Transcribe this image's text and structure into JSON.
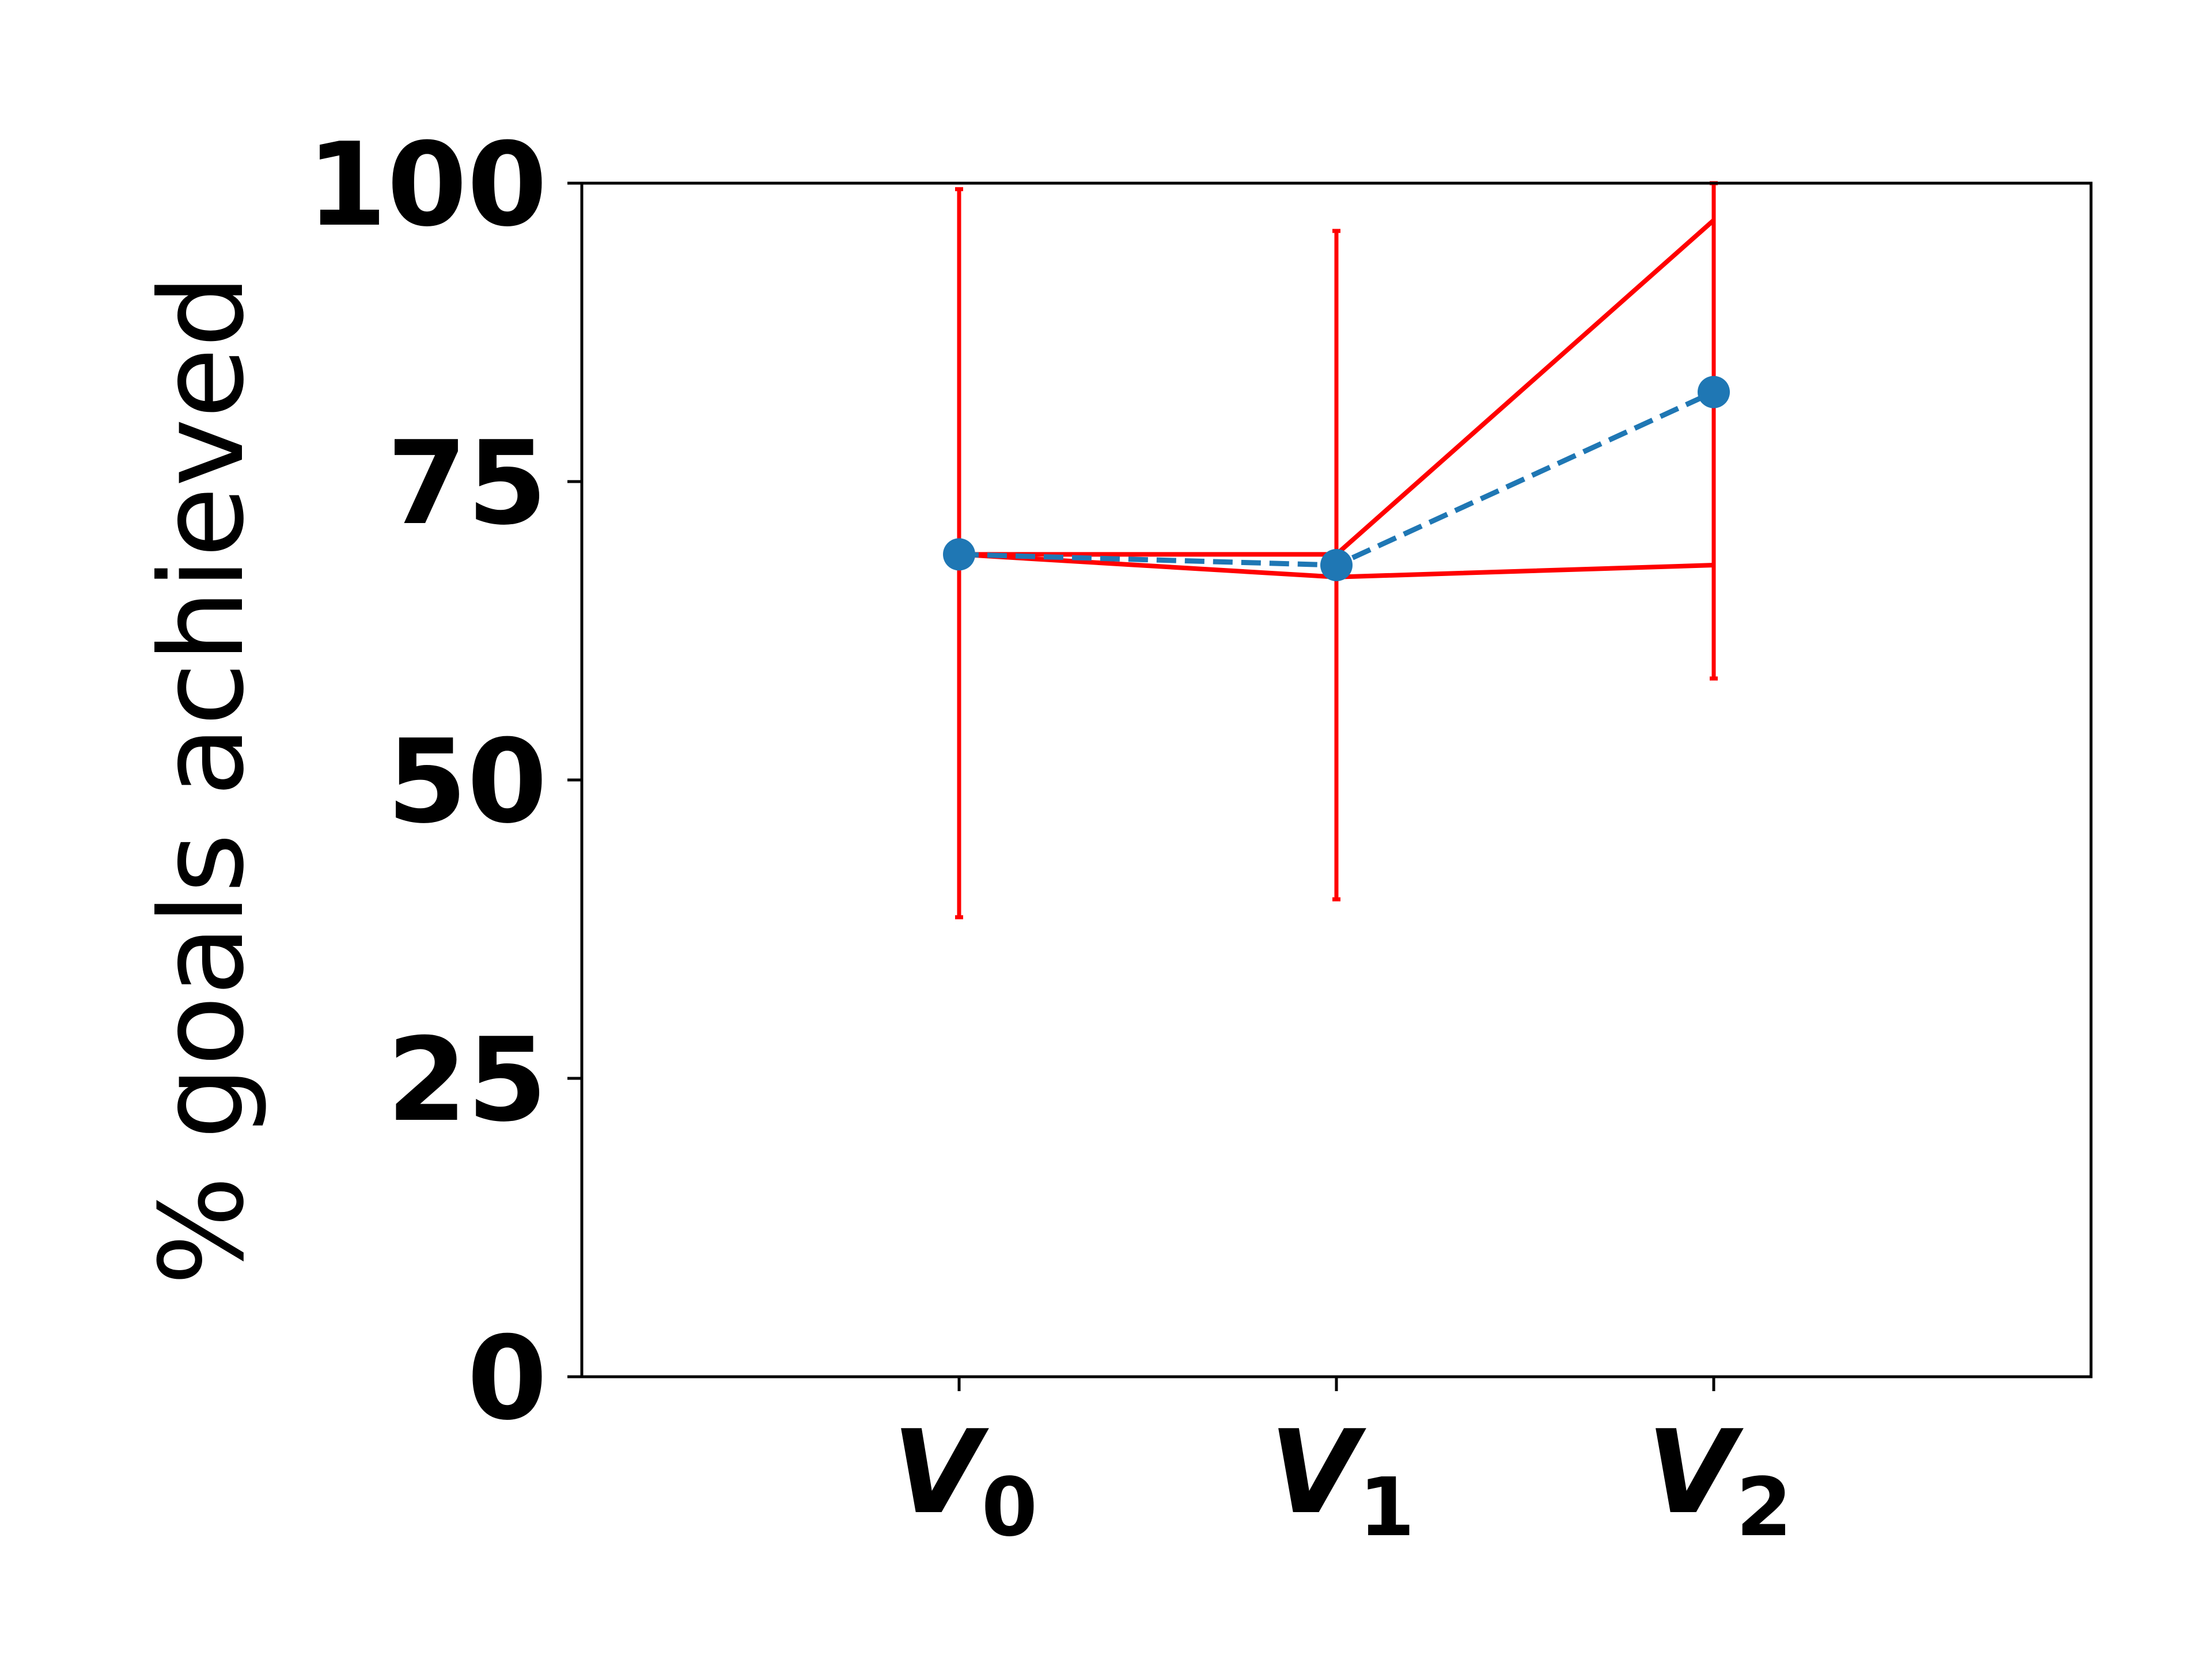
{
  "chart_data": {
    "type": "line",
    "title": "",
    "xlabel": "",
    "ylabel": "% goals achieved",
    "categories": [
      {
        "base": "V",
        "sub": "0"
      },
      {
        "base": "V",
        "sub": "1"
      },
      {
        "base": "V",
        "sub": "2"
      }
    ],
    "yticks": [
      "0",
      "25",
      "50",
      "75",
      "100"
    ],
    "ylim": [
      0,
      100
    ],
    "grid": false,
    "mean": {
      "values": [
        68.9,
        68.0,
        82.5
      ],
      "color": "#1f77b4",
      "linestyle": "dashed",
      "marker": "circle"
    },
    "error_bars": {
      "color": "#ff0000",
      "lower": [
        38.5,
        40.0,
        58.5
      ],
      "upper": [
        99.5,
        96.0,
        100.0
      ]
    },
    "band_lines": {
      "color": "#ff0000",
      "upper": [
        68.9,
        68.9,
        96.9
      ],
      "lower": [
        68.9,
        67.0,
        68.0
      ]
    }
  }
}
